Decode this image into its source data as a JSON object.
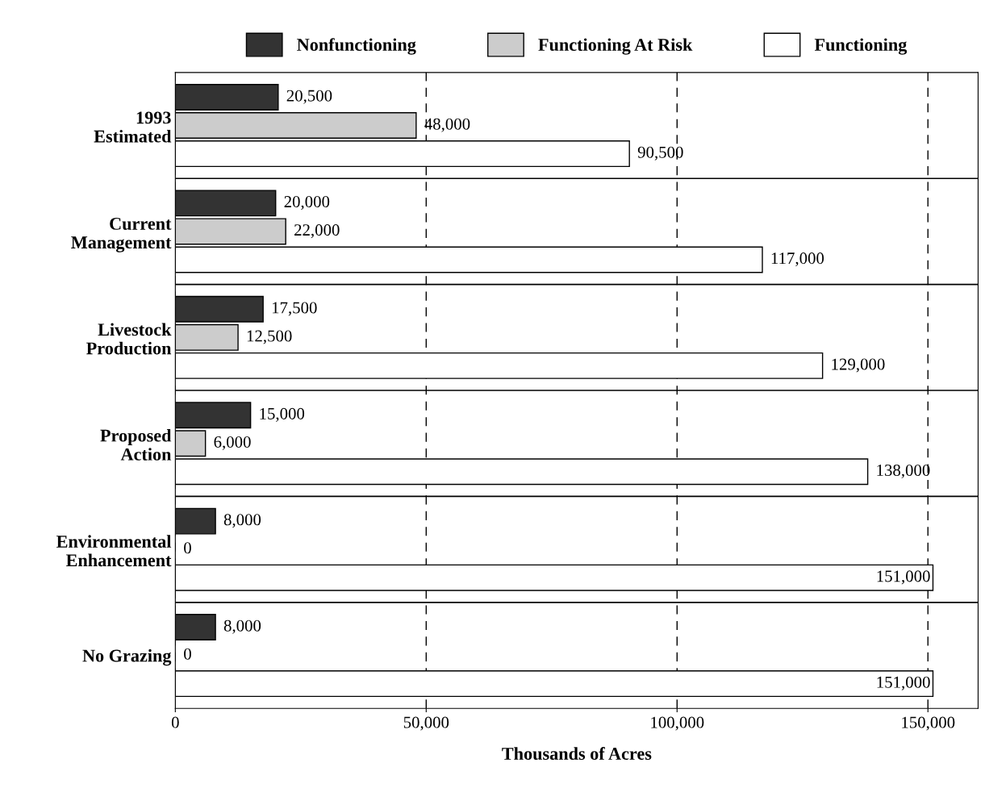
{
  "chart_data": {
    "type": "bar",
    "orientation": "horizontal",
    "xlabel": "Thousands of Acres",
    "categories": [
      "1993\nEstimated",
      "Current\nManagement",
      "Livestock\nProduction",
      "Proposed\nAction",
      "Environmental\nEnhancement",
      "No Grazing"
    ],
    "series": [
      {
        "name": "Nonfunctioning",
        "color": "#333333",
        "values": [
          20500,
          20000,
          17500,
          15000,
          8000,
          8000
        ],
        "value_labels": [
          "20,500",
          "20,000",
          "17,500",
          "15,000",
          "8,000",
          "8,000"
        ]
      },
      {
        "name": "Functioning At Risk",
        "color": "#cccccc",
        "values": [
          48000,
          22000,
          12500,
          6000,
          0,
          0
        ],
        "value_labels": [
          "48,000",
          "22,000",
          "12,500",
          "6,000",
          "0",
          "0"
        ]
      },
      {
        "name": "Functioning",
        "color": "#ffffff",
        "values": [
          90500,
          117000,
          129000,
          138000,
          151000,
          151000
        ],
        "value_labels": [
          "90,500",
          "117,000",
          "129,000",
          "138,000",
          "151,000",
          "151,000"
        ]
      }
    ],
    "xlim": [
      0,
      160000
    ],
    "xticks": [
      0,
      {
        "value": 50000,
        "label": "50,000"
      },
      {
        "value": 100000,
        "label": "100,000"
      },
      {
        "value": 150000,
        "label": "150,000"
      }
    ],
    "grid": "x",
    "legend": "top"
  }
}
